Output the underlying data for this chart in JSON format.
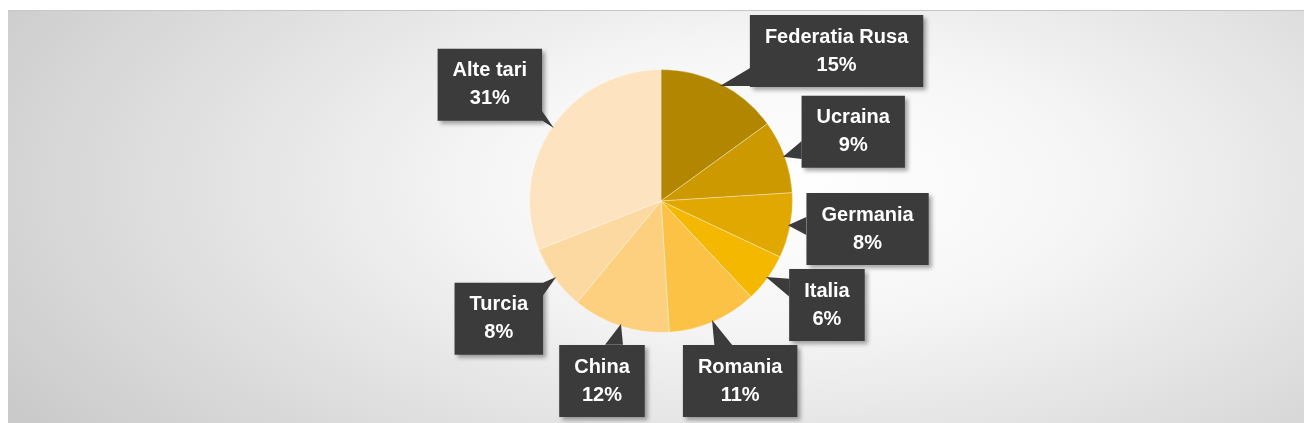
{
  "chart_data": {
    "type": "pie",
    "categories": [
      "Federatia Rusa",
      "Ucraina",
      "Germania",
      "Italia",
      "Romania",
      "China",
      "Turcia",
      "Alte tari"
    ],
    "values": [
      15,
      9,
      8,
      6,
      11,
      12,
      8,
      31
    ],
    "colors": [
      "#b38600",
      "#cc9900",
      "#e0a800",
      "#f5b800",
      "#fcc245",
      "#fdd080",
      "#fdd9a2",
      "#fde3c0"
    ],
    "value_labels": [
      "15%",
      "9%",
      "8%",
      "6%",
      "11%",
      "12%",
      "8%",
      "31%"
    ],
    "legend": false
  }
}
